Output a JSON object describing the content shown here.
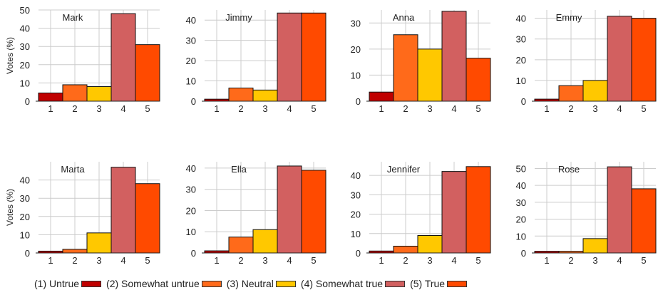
{
  "colors": {
    "1": "#c00000",
    "2": "#ff6a1a",
    "3": "#ffc800",
    "4": "#d26060",
    "5": "#ff4a00",
    "grid": "#cccccc",
    "axis": "#222222"
  },
  "legend": [
    {
      "label": "(1) Untrue",
      "category": "1"
    },
    {
      "label": "(2) Somewhat untrue",
      "category": "2"
    },
    {
      "label": "(3) Neutral",
      "category": "3"
    },
    {
      "label": "(4) Somewhat true",
      "category": "4"
    },
    {
      "label": "(5) True",
      "category": "5"
    }
  ],
  "chart_data": [
    {
      "type": "bar",
      "title": "Mark",
      "categories": [
        "1",
        "2",
        "3",
        "4",
        "5"
      ],
      "values": [
        4.5,
        9,
        8,
        48,
        31
      ],
      "ylabel": "Votes (%)",
      "ylim": [
        0,
        50
      ],
      "yticks": [
        0,
        10,
        20,
        30,
        40,
        50
      ],
      "grid": true
    },
    {
      "type": "bar",
      "title": "Jimmy",
      "categories": [
        "1",
        "2",
        "3",
        "4",
        "5"
      ],
      "values": [
        1,
        6.5,
        5.5,
        43.5,
        43.5
      ],
      "ylabel": "",
      "ylim": [
        0,
        45
      ],
      "yticks": [
        0,
        10,
        20,
        30,
        40
      ],
      "grid": true
    },
    {
      "type": "bar",
      "title": "Anna",
      "categories": [
        "1",
        "2",
        "3",
        "4",
        "5"
      ],
      "values": [
        3.5,
        25.5,
        20,
        34.5,
        16.5
      ],
      "ylabel": "",
      "ylim": [
        0,
        35
      ],
      "yticks": [
        0,
        10,
        20,
        30
      ],
      "grid": true
    },
    {
      "type": "bar",
      "title": "Emmy",
      "categories": [
        "1",
        "2",
        "3",
        "4",
        "5"
      ],
      "values": [
        1,
        7.5,
        10,
        41,
        40
      ],
      "ylabel": "",
      "ylim": [
        0,
        44
      ],
      "yticks": [
        0,
        10,
        20,
        30,
        40
      ],
      "grid": true
    },
    {
      "type": "bar",
      "title": "Marta",
      "categories": [
        "1",
        "2",
        "3",
        "4",
        "5"
      ],
      "values": [
        1,
        2,
        11,
        47,
        38
      ],
      "ylabel": "Votes (%)",
      "ylim": [
        0,
        50
      ],
      "yticks": [
        0,
        10,
        20,
        30,
        40
      ],
      "grid": true
    },
    {
      "type": "bar",
      "title": "Ella",
      "categories": [
        "1",
        "2",
        "3",
        "4",
        "5"
      ],
      "values": [
        1,
        7.5,
        11,
        41,
        39
      ],
      "ylabel": "",
      "ylim": [
        0,
        43
      ],
      "yticks": [
        0,
        10,
        20,
        30,
        40
      ],
      "grid": true
    },
    {
      "type": "bar",
      "title": "Jennifer",
      "categories": [
        "1",
        "2",
        "3",
        "4",
        "5"
      ],
      "values": [
        1,
        3.5,
        9,
        42,
        44.5
      ],
      "ylabel": "",
      "ylim": [
        0,
        47
      ],
      "yticks": [
        0,
        10,
        20,
        30,
        40
      ],
      "grid": true
    },
    {
      "type": "bar",
      "title": "Rose",
      "categories": [
        "1",
        "2",
        "3",
        "4",
        "5"
      ],
      "values": [
        1,
        1,
        8.5,
        51,
        38
      ],
      "ylabel": "",
      "ylim": [
        0,
        54
      ],
      "yticks": [
        0,
        10,
        20,
        30,
        40,
        50
      ],
      "grid": true
    }
  ]
}
